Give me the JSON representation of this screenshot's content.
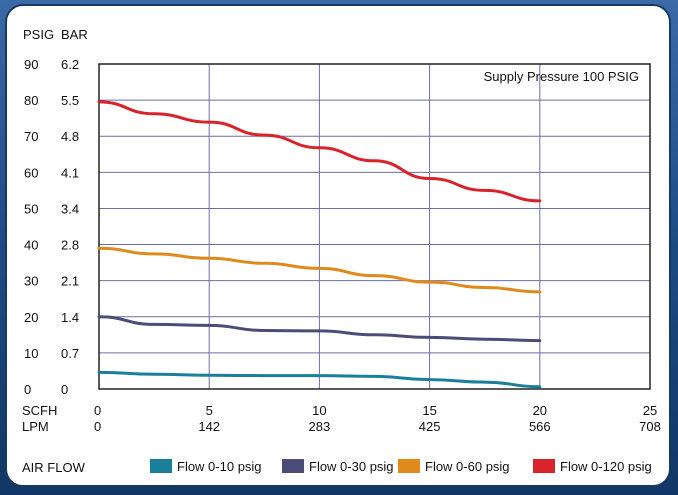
{
  "chart_data": {
    "type": "line",
    "title": "",
    "annotation": "Supply Pressure 100 PSIG",
    "y_units": [
      "PSIG",
      "BAR"
    ],
    "y_ticks_psig": [
      "90",
      "80",
      "70",
      "60",
      "50",
      "40",
      "30",
      "20",
      "10",
      "0"
    ],
    "y_ticks_bar": [
      "6.2",
      "5.5",
      "4.8",
      "4.1",
      "3.4",
      "2.8",
      "2.1",
      "1.4",
      "0.7",
      "0"
    ],
    "x_units": [
      "SCFH",
      "LPM"
    ],
    "x_ticks_scfh": [
      "0",
      "5",
      "10",
      "15",
      "20",
      "25"
    ],
    "x_ticks_lpm": [
      "0",
      "142",
      "283",
      "425",
      "566",
      "708"
    ],
    "xlabel": "AIR FLOW",
    "xlim": [
      0,
      25
    ],
    "ylim": [
      0,
      90
    ],
    "grid": true,
    "legend_position": "bottom",
    "series": [
      {
        "name": "Flow 0-10 psig",
        "color": "#1b7f9b",
        "x": [
          0,
          2.5,
          5,
          7.5,
          10,
          12.5,
          15,
          17.5,
          20
        ],
        "y": [
          4.6,
          4.1,
          3.8,
          3.7,
          3.7,
          3.5,
          2.6,
          1.9,
          0.6
        ]
      },
      {
        "name": "Flow 0-30 psig",
        "color": "#4b4d78",
        "x": [
          0,
          2.5,
          5,
          7.5,
          10,
          12.5,
          15,
          17.5,
          20
        ],
        "y": [
          20.0,
          17.9,
          17.6,
          16.2,
          16.1,
          15.0,
          14.3,
          13.8,
          13.4
        ]
      },
      {
        "name": "Flow 0-60 psig",
        "color": "#e08a1e",
        "x": [
          0,
          2.5,
          5,
          7.5,
          10,
          12.5,
          15,
          17.5,
          20
        ],
        "y": [
          39.0,
          37.4,
          36.2,
          34.8,
          33.4,
          31.4,
          29.6,
          28.1,
          26.9
        ]
      },
      {
        "name": "Flow 0-120 psig",
        "color": "#d8232a",
        "x": [
          0,
          2.5,
          5,
          7.5,
          10,
          12.5,
          15,
          17.5,
          20
        ],
        "y": [
          79.5,
          76.2,
          73.9,
          70.3,
          66.8,
          63.2,
          58.3,
          55.0,
          52.1
        ]
      }
    ]
  }
}
